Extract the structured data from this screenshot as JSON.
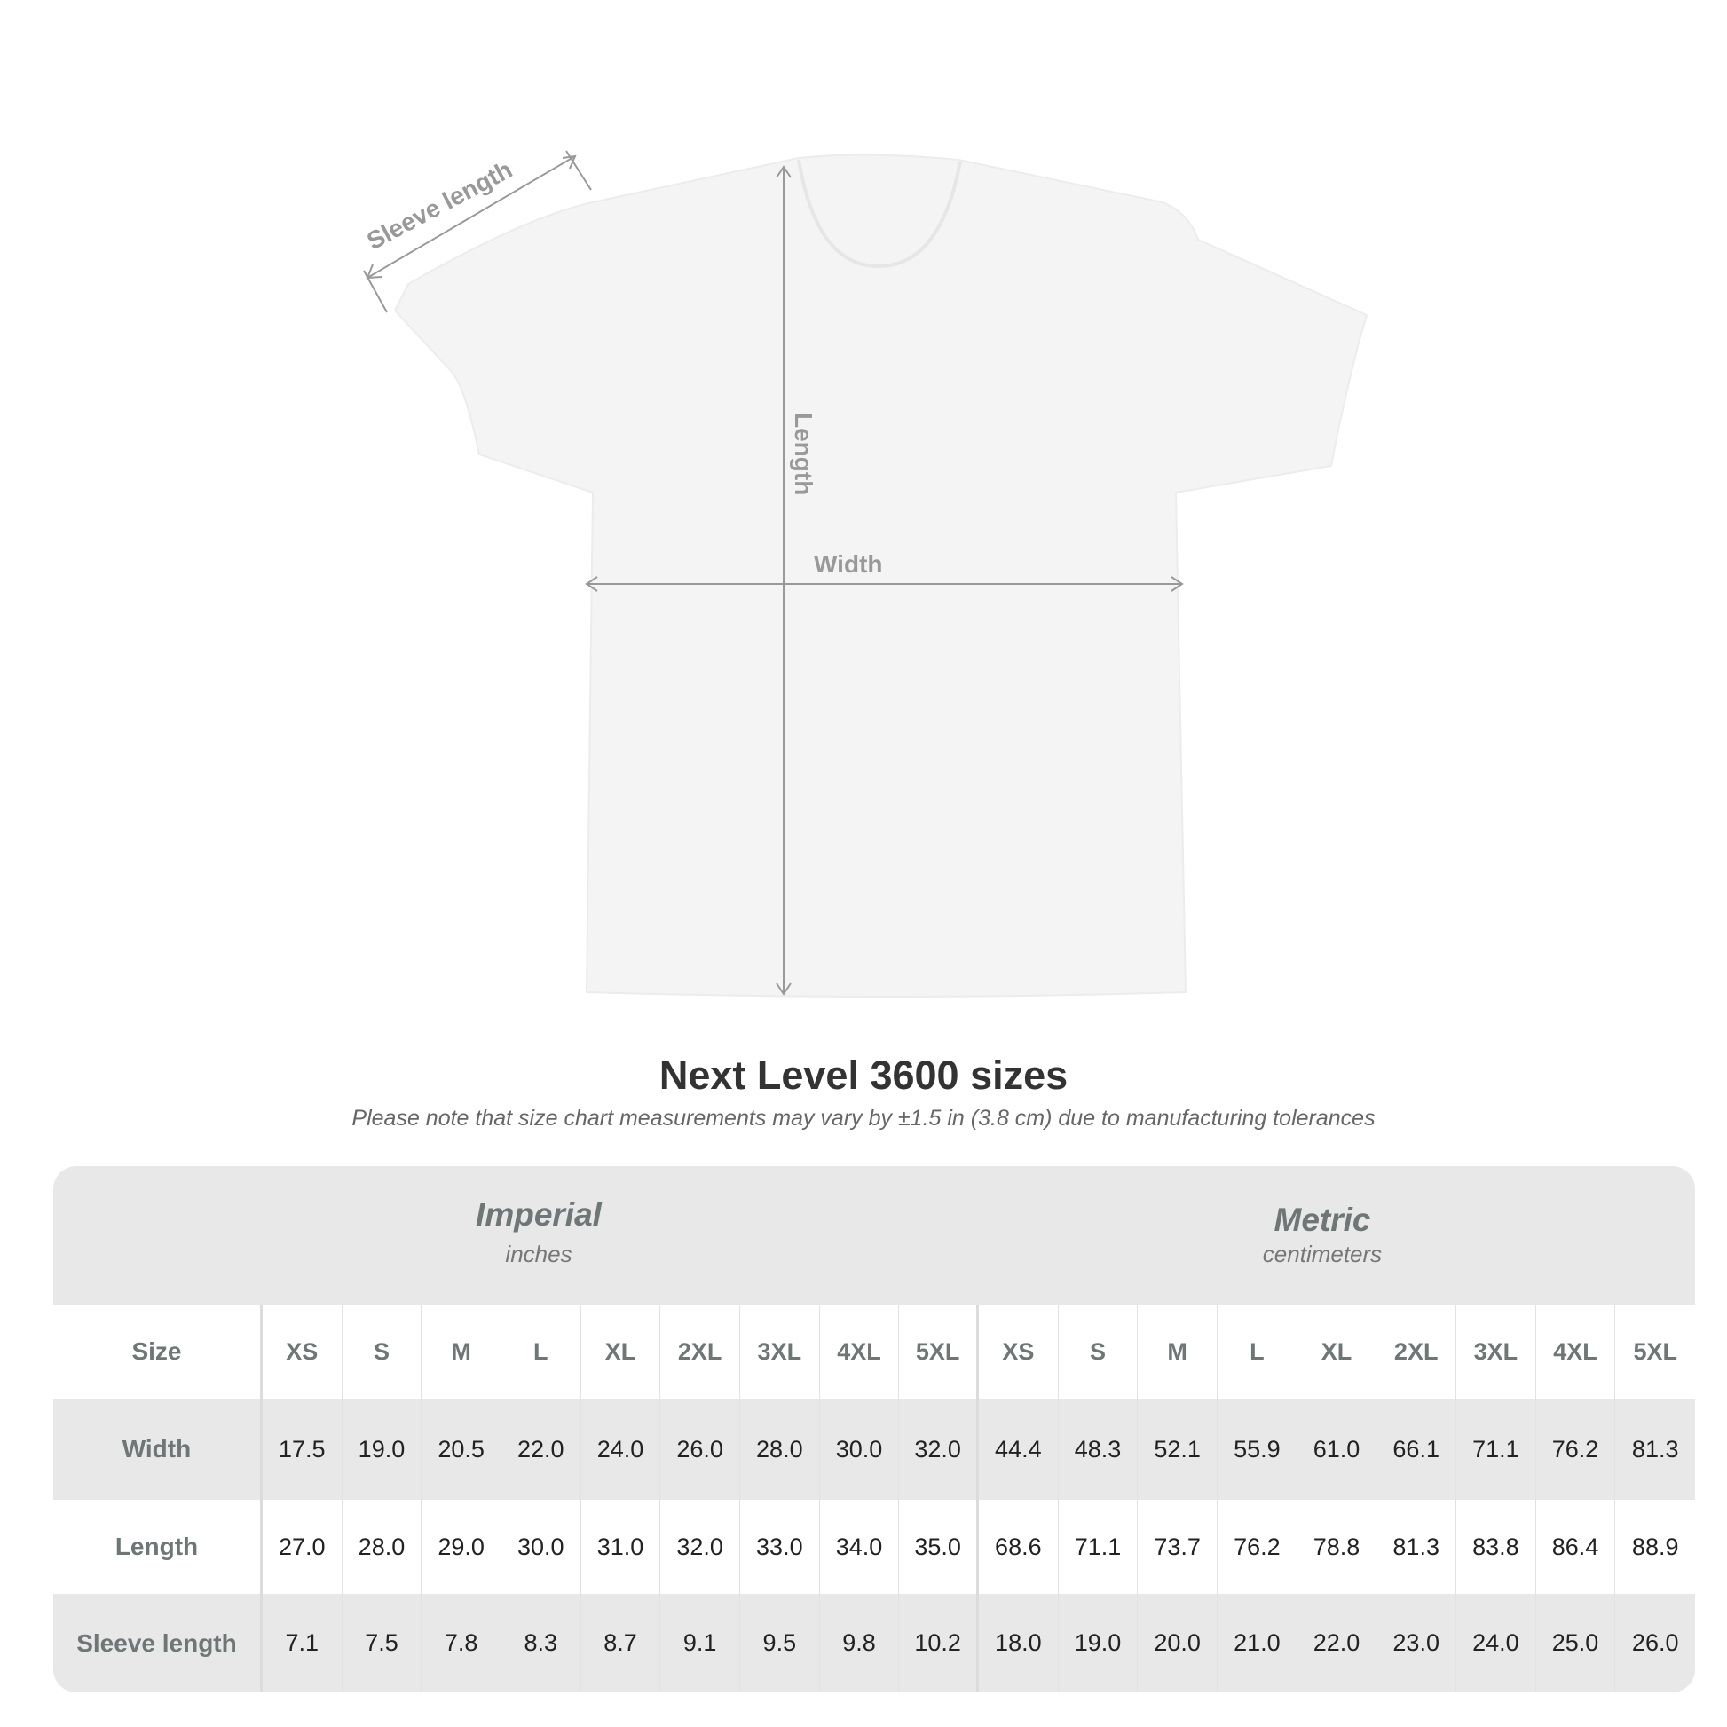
{
  "diagram": {
    "labels": {
      "sleeve": "Sleeve length",
      "length": "Length",
      "width": "Width"
    },
    "shirt_color": "#f4f4f4",
    "arrow_color": "#999999"
  },
  "title": "Next Level 3600 sizes",
  "note": "Please note that size chart measurements may vary by ±1.5 in (3.8 cm) due to manufacturing tolerances",
  "table": {
    "imperial": {
      "name": "Imperial",
      "unit": "inches"
    },
    "metric": {
      "name": "Metric",
      "unit": "centimeters"
    },
    "size_label": "Size",
    "sizes": [
      "XS",
      "S",
      "M",
      "L",
      "XL",
      "2XL",
      "3XL",
      "4XL",
      "5XL"
    ],
    "rows": [
      {
        "label": "Width",
        "imperial": [
          "17.5",
          "19.0",
          "20.5",
          "22.0",
          "24.0",
          "26.0",
          "28.0",
          "30.0",
          "32.0"
        ],
        "metric": [
          "44.4",
          "48.3",
          "52.1",
          "55.9",
          "61.0",
          "66.1",
          "71.1",
          "76.2",
          "81.3"
        ]
      },
      {
        "label": "Length",
        "imperial": [
          "27.0",
          "28.0",
          "29.0",
          "30.0",
          "31.0",
          "32.0",
          "33.0",
          "34.0",
          "35.0"
        ],
        "metric": [
          "68.6",
          "71.1",
          "73.7",
          "76.2",
          "78.8",
          "81.3",
          "83.8",
          "86.4",
          "88.9"
        ]
      },
      {
        "label": "Sleeve length",
        "imperial": [
          "7.1",
          "7.5",
          "7.8",
          "8.3",
          "8.7",
          "9.1",
          "9.5",
          "9.8",
          "10.2"
        ],
        "metric": [
          "18.0",
          "19.0",
          "20.0",
          "21.0",
          "22.0",
          "23.0",
          "24.0",
          "25.0",
          "26.0"
        ]
      }
    ]
  }
}
